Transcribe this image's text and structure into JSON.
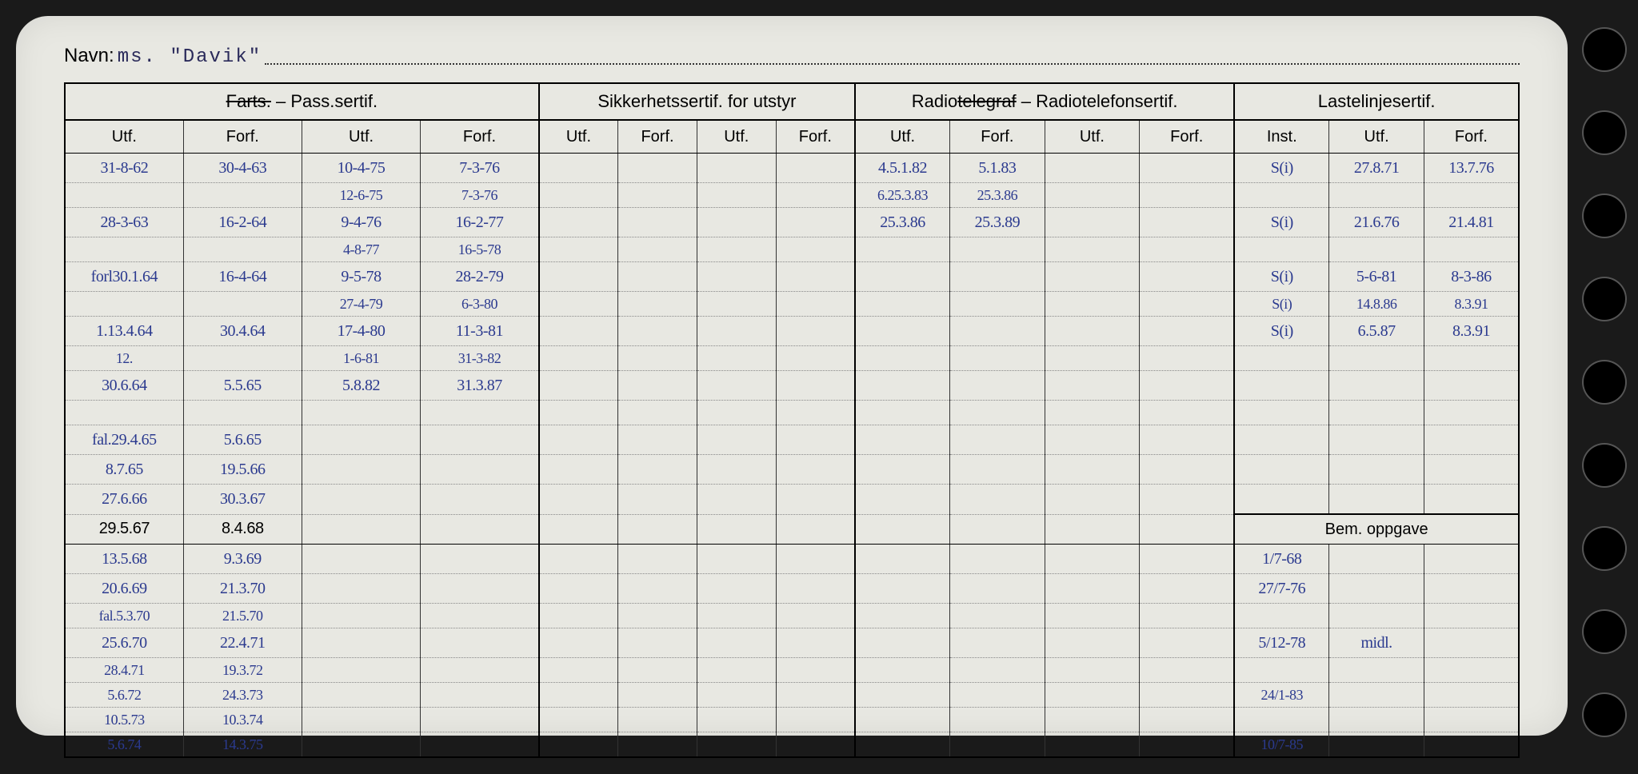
{
  "navn_label": "Navn:",
  "navn_value": "ms. \"Davik\"",
  "header_groups": [
    {
      "label": "Farts. – Pass.sertif.",
      "strike": "Farts."
    },
    {
      "label": "Sikkerhetssertif. for utstyr"
    },
    {
      "label": "Radiotelegraf – Radiotelefonsertif.",
      "strike": "telegraf"
    },
    {
      "label": "Lastelinjesertif."
    }
  ],
  "sub_headers_a": [
    "Utf.",
    "Forf.",
    "Utf.",
    "Forf."
  ],
  "sub_headers_b": [
    "Utf.",
    "Forf.",
    "Utf.",
    "Forf."
  ],
  "sub_headers_c": [
    "Utf.",
    "Forf.",
    "Utf.",
    "Forf."
  ],
  "sub_headers_d": [
    "Inst.",
    "Utf.",
    "Forf."
  ],
  "bem_label": "Bem. oppgave",
  "rows": [
    {
      "g1": [
        "31-8-62",
        "30-4-63",
        "10-4-75",
        "7-3-76"
      ],
      "g3": [
        "4.5.1.82",
        "5.1.83",
        "",
        ""
      ],
      "g4": [
        "S(i)",
        "27.8.71",
        "13.7.76"
      ]
    },
    {
      "g1": [
        "",
        "",
        "12-6-75",
        "7-3-76"
      ],
      "g3": [
        "6.25.3.83",
        "25.3.86",
        "",
        ""
      ],
      "g4": [
        "",
        "",
        ""
      ],
      "tight": true
    },
    {
      "g1": [
        "28-3-63",
        "16-2-64",
        "9-4-76",
        "16-2-77"
      ],
      "g3": [
        "25.3.86",
        "25.3.89",
        "",
        ""
      ],
      "g4": [
        "S(i)",
        "21.6.76",
        "21.4.81"
      ]
    },
    {
      "g1": [
        "",
        "",
        "4-8-77",
        "16-5-78"
      ],
      "g3": [
        "",
        "",
        "",
        ""
      ],
      "g4": [
        "",
        "",
        ""
      ],
      "tight": true
    },
    {
      "g1": [
        "forl30.1.64",
        "16-4-64",
        "9-5-78",
        "28-2-79"
      ],
      "g3": [
        "",
        "",
        "",
        ""
      ],
      "g4": [
        "S(i)",
        "5-6-81",
        "8-3-86"
      ]
    },
    {
      "g1": [
        "",
        "",
        "27-4-79",
        "6-3-80"
      ],
      "g3": [
        "",
        "",
        "",
        ""
      ],
      "g4": [
        "S(i)",
        "14.8.86",
        "8.3.91"
      ],
      "tight": true
    },
    {
      "g1": [
        "1.13.4.64",
        "30.4.64",
        "17-4-80",
        "11-3-81"
      ],
      "g3": [
        "",
        "",
        "",
        ""
      ],
      "g4": [
        "S(i)",
        "6.5.87",
        "8.3.91"
      ]
    },
    {
      "g1": [
        "12.",
        "",
        "1-6-81",
        "31-3-82"
      ],
      "g3": [
        "",
        "",
        "",
        ""
      ],
      "g4": [
        "",
        "",
        ""
      ],
      "tight": true
    },
    {
      "g1": [
        "30.6.64",
        "5.5.65",
        "5.8.82",
        "31.3.87"
      ],
      "g3": [
        "",
        "",
        "",
        ""
      ],
      "g4": [
        "",
        "",
        ""
      ]
    },
    {
      "g1": [
        "",
        "",
        "",
        ""
      ],
      "g3": [
        "",
        "",
        "",
        ""
      ],
      "g4": [
        "",
        "",
        ""
      ],
      "tight": true
    },
    {
      "g1": [
        "fal.29.4.65",
        "5.6.65",
        "",
        ""
      ],
      "g3": [
        "",
        "",
        "",
        ""
      ],
      "g4": [
        "",
        "",
        ""
      ]
    },
    {
      "g1": [
        "8.7.65",
        "19.5.66",
        "",
        ""
      ],
      "g3": [
        "",
        "",
        "",
        ""
      ],
      "g4": [
        "",
        "",
        ""
      ]
    },
    {
      "g1": [
        "27.6.66",
        "30.3.67",
        "",
        ""
      ],
      "g3": [
        "",
        "",
        "",
        ""
      ],
      "g4": [
        "",
        "",
        ""
      ]
    }
  ],
  "bem_rows": [
    {
      "g1": [
        "29.5.67",
        "8.4.68",
        "",
        ""
      ],
      "g4": [
        "",
        "",
        ""
      ]
    },
    {
      "g1": [
        "13.5.68",
        "9.3.69",
        "",
        ""
      ],
      "g4": [
        "1/7-68",
        "",
        ""
      ]
    },
    {
      "g1": [
        "20.6.69",
        "21.3.70",
        "",
        ""
      ],
      "g4": [
        "27/7-76",
        "",
        ""
      ]
    },
    {
      "g1": [
        "fal.5.3.70",
        "21.5.70",
        "",
        ""
      ],
      "g4": [
        "",
        "",
        ""
      ],
      "tight": true
    },
    {
      "g1": [
        "25.6.70",
        "22.4.71",
        "",
        ""
      ],
      "g4": [
        "5/12-78",
        "midl.",
        ""
      ]
    },
    {
      "g1": [
        "28.4.71",
        "19.3.72",
        "",
        ""
      ],
      "g4": [
        "",
        "",
        ""
      ],
      "tight": true
    },
    {
      "g1": [
        "5.6.72",
        "24.3.73",
        "",
        ""
      ],
      "g4": [
        "24/1-83",
        "",
        ""
      ],
      "tight": true
    },
    {
      "g1": [
        "10.5.73",
        "10.3.74",
        "",
        ""
      ],
      "g4": [
        "",
        "",
        ""
      ],
      "tight": true
    },
    {
      "g1": [
        "5.6.74",
        "14.3.75",
        "",
        ""
      ],
      "g4": [
        "10/7-85",
        "",
        ""
      ],
      "tight": true
    }
  ]
}
